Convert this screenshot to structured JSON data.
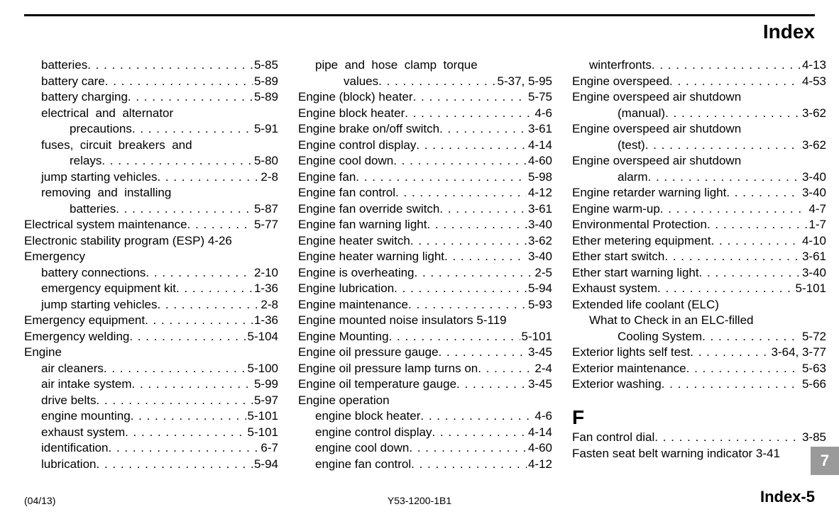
{
  "header": {
    "title": "Index"
  },
  "footer": {
    "left": "(04/13)",
    "center": "Y53-1200-1B1",
    "right": "Index-5"
  },
  "tab": {
    "label": "7",
    "bg": "#9a9a9a",
    "fg": "#ffffff"
  },
  "columns": [
    [
      {
        "indent": 1,
        "label": "batteries",
        "page": "5-85"
      },
      {
        "indent": 1,
        "label": "battery care",
        "page": "5-89"
      },
      {
        "indent": 1,
        "label": "battery charging",
        "page": "5-89"
      },
      {
        "indent": 1,
        "label": "electrical  and  alternator",
        "page": "",
        "nodots": true
      },
      {
        "indent": 2,
        "label": "precautions",
        "page": "5-91"
      },
      {
        "indent": 1,
        "label": "fuses,  circuit  breakers  and",
        "page": "",
        "nodots": true
      },
      {
        "indent": 2,
        "label": "relays",
        "page": "5-80"
      },
      {
        "indent": 1,
        "label": "jump starting vehicles",
        "page": "2-8"
      },
      {
        "indent": 1,
        "label": "removing  and  installing",
        "page": "",
        "nodots": true
      },
      {
        "indent": 2,
        "label": "batteries",
        "page": "5-87"
      },
      {
        "indent": 0,
        "label": "Electrical system maintenance",
        "page": "5-77"
      },
      {
        "indent": 0,
        "label": "Electronic stability program (ESP) 4-26",
        "page": "",
        "nodots": true
      },
      {
        "indent": 0,
        "label": "Emergency",
        "page": "",
        "nodots": true
      },
      {
        "indent": 1,
        "label": "battery connections",
        "page": "2-10"
      },
      {
        "indent": 1,
        "label": "emergency equipment kit",
        "page": "1-36"
      },
      {
        "indent": 1,
        "label": "jump starting vehicles",
        "page": "2-8"
      },
      {
        "indent": 0,
        "label": "Emergency equipment",
        "page": "1-36"
      },
      {
        "indent": 0,
        "label": "Emergency welding",
        "page": "5-104"
      },
      {
        "indent": 0,
        "label": "Engine",
        "page": "",
        "nodots": true
      },
      {
        "indent": 1,
        "label": "air cleaners",
        "page": "5-100"
      },
      {
        "indent": 1,
        "label": "air intake system",
        "page": "5-99"
      },
      {
        "indent": 1,
        "label": "drive belts",
        "page": "5-97"
      },
      {
        "indent": 1,
        "label": "engine mounting",
        "page": "5-101"
      },
      {
        "indent": 1,
        "label": "exhaust system",
        "page": "5-101"
      },
      {
        "indent": 1,
        "label": "identification",
        "page": "6-7"
      },
      {
        "indent": 1,
        "label": "lubrication",
        "page": "5-94"
      }
    ],
    [
      {
        "indent": 1,
        "label": "pipe  and  hose  clamp  torque",
        "page": "",
        "nodots": true
      },
      {
        "indent": 2,
        "label": "values",
        "page": "5-37, 5-95"
      },
      {
        "indent": 0,
        "label": "Engine (block) heater",
        "page": "5-75"
      },
      {
        "indent": 0,
        "label": "Engine block heater",
        "page": "4-6"
      },
      {
        "indent": 0,
        "label": "Engine brake on/off switch",
        "page": "3-61"
      },
      {
        "indent": 0,
        "label": "Engine control display",
        "page": "4-14"
      },
      {
        "indent": 0,
        "label": "Engine cool down",
        "page": "4-60"
      },
      {
        "indent": 0,
        "label": "Engine fan",
        "page": "5-98"
      },
      {
        "indent": 0,
        "label": "Engine fan control",
        "page": "4-12"
      },
      {
        "indent": 0,
        "label": "Engine fan override switch",
        "page": "3-61"
      },
      {
        "indent": 0,
        "label": "Engine fan warning light",
        "page": "3-40"
      },
      {
        "indent": 0,
        "label": "Engine heater switch",
        "page": "3-62"
      },
      {
        "indent": 0,
        "label": "Engine heater warning light",
        "page": "3-40"
      },
      {
        "indent": 0,
        "label": "Engine is overheating",
        "page": "2-5"
      },
      {
        "indent": 0,
        "label": "Engine lubrication",
        "page": "5-94"
      },
      {
        "indent": 0,
        "label": "Engine maintenance",
        "page": "5-93"
      },
      {
        "indent": 0,
        "label": "Engine mounted noise insulators 5-119",
        "page": "",
        "nodots": true
      },
      {
        "indent": 0,
        "label": "Engine Mounting",
        "page": "5-101"
      },
      {
        "indent": 0,
        "label": "Engine oil pressure gauge",
        "page": "3-45"
      },
      {
        "indent": 0,
        "label": "Engine oil pressure lamp turns on",
        "page": "2-4"
      },
      {
        "indent": 0,
        "label": "Engine oil temperature gauge",
        "page": "3-45"
      },
      {
        "indent": 0,
        "label": "Engine operation",
        "page": "",
        "nodots": true
      },
      {
        "indent": 1,
        "label": "engine block heater",
        "page": "4-6"
      },
      {
        "indent": 1,
        "label": "engine control display",
        "page": "4-14"
      },
      {
        "indent": 1,
        "label": "engine cool down",
        "page": "4-60"
      },
      {
        "indent": 1,
        "label": "engine fan control",
        "page": "4-12"
      }
    ],
    [
      {
        "indent": 1,
        "label": "winterfronts",
        "page": "4-13"
      },
      {
        "indent": 0,
        "label": "Engine overspeed",
        "page": "4-53"
      },
      {
        "indent": 0,
        "label": "Engine overspeed air shutdown",
        "page": "",
        "nodots": true
      },
      {
        "indent": 2,
        "label": "(manual)",
        "page": "3-62"
      },
      {
        "indent": 0,
        "label": "Engine overspeed air shutdown",
        "page": "",
        "nodots": true
      },
      {
        "indent": 2,
        "label": "(test)",
        "page": "3-62"
      },
      {
        "indent": 0,
        "label": "Engine overspeed air shutdown",
        "page": "",
        "nodots": true
      },
      {
        "indent": 2,
        "label": "alarm",
        "page": "3-40"
      },
      {
        "indent": 0,
        "label": "Engine retarder warning light",
        "page": "3-40"
      },
      {
        "indent": 0,
        "label": "Engine warm-up",
        "page": "4-7"
      },
      {
        "indent": 0,
        "label": "Environmental Protection",
        "page": "1-7"
      },
      {
        "indent": 0,
        "label": "Ether metering equipment",
        "page": "4-10"
      },
      {
        "indent": 0,
        "label": "Ether start switch",
        "page": "3-61"
      },
      {
        "indent": 0,
        "label": "Ether start warning light",
        "page": "3-40"
      },
      {
        "indent": 0,
        "label": "Exhaust system",
        "page": "5-101"
      },
      {
        "indent": 0,
        "label": "Extended life coolant (ELC)",
        "page": "",
        "nodots": true
      },
      {
        "indent": 1,
        "label": "What to Check in an ELC-filled",
        "page": "",
        "nodots": true
      },
      {
        "indent": 2,
        "label": "Cooling System",
        "page": "5-72"
      },
      {
        "indent": 0,
        "label": "Exterior lights self test",
        "page": "3-64, 3-77"
      },
      {
        "indent": 0,
        "label": "Exterior maintenance",
        "page": "5-63"
      },
      {
        "indent": 0,
        "label": "Exterior washing",
        "page": "5-66"
      },
      {
        "section": "F"
      },
      {
        "indent": 0,
        "label": "Fan control dial",
        "page": "3-85"
      },
      {
        "indent": 0,
        "label": "Fasten seat belt warning indicator 3-41",
        "page": "",
        "nodots": true
      }
    ]
  ]
}
